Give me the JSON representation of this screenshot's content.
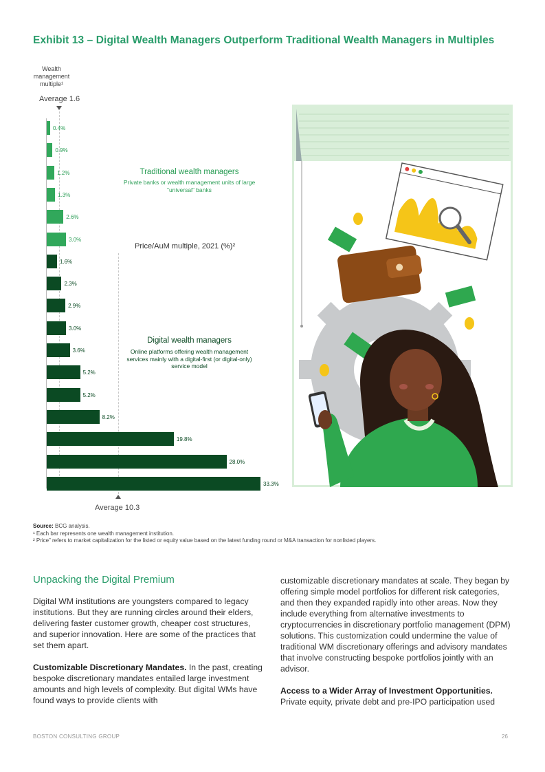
{
  "exhibit_title": "Exhibit 13 – Digital Wealth Managers Outperform Traditional Wealth Managers in Multiples",
  "chart_data": {
    "type": "bar",
    "orientation": "horizontal",
    "ylabel": "Wealth management multiple¹",
    "subtitle": "Price/AuM multiple, 2021 (%)²",
    "average_top_label": "Average 1.6",
    "average_bottom_label": "Average 10.3",
    "series": [
      {
        "name": "Traditional wealth managers",
        "description": "Private banks or wealth management units of large “universal” banks",
        "color": "#31a85b",
        "values": [
          0.4,
          0.9,
          1.2,
          1.3,
          2.6,
          3.0
        ],
        "labels": [
          "0.4%",
          "0.9%",
          "1.2%",
          "1.3%",
          "2.6%",
          "3.0%"
        ]
      },
      {
        "name": "Digital wealth managers",
        "description": "Online platforms offering wealth management services mainly with a digital-first (or digital-only) service model",
        "color": "#0b4a23",
        "values": [
          1.6,
          2.3,
          2.9,
          3.0,
          3.6,
          5.2,
          5.2,
          8.2,
          19.8,
          28.0,
          33.3
        ],
        "labels": [
          "1.6%",
          "2.3%",
          "2.9%",
          "3.0%",
          "3.6%",
          "5.2%",
          "5.2%",
          "8.2%",
          "19.8%",
          "28.0%",
          "33.3%"
        ]
      }
    ]
  },
  "source": {
    "label": "Source:",
    "text": "BCG analysis.",
    "note1": "¹ Each bar represents one wealth management institution.",
    "note2": "² Price” refers to market capitalization for the listed or equity value based on the latest funding round or M&A transaction for nonlisted players."
  },
  "body": {
    "heading": "Unpacking the Digital Premium",
    "p1": "Digital WM institutions are youngsters compared to legacy institutions. But they are running circles around their elders, delivering faster customer growth, cheaper cost structures, and superior innovation. Here are some of the practices that set them apart.",
    "p2_bold": "Customizable Discretionary Mandates.",
    "p2": " In the past, creating bespoke discretionary mandates entailed large investment amounts and high levels of complexity. But digital WMs have found ways to provide clients with",
    "p3": "customizable discretionary mandates at scale. They began by offering simple model portfolios for different risk categories, and then they expanded rapidly into other areas. Now they include everything from alternative investments to cryptocurrencies in discretionary portfolio management (DPM) solutions. This customization could undermine the value of traditional WM discretionary offerings and advisory mandates that involve constructing bespoke portfolios jointly with an advisor.",
    "p4_bold": "Access to a Wider Array of Investment Opportunities.",
    "p4": "Private equity, private debt and pre-IPO participation used"
  },
  "footer": {
    "left": "BOSTON CONSULTING GROUP",
    "right": "26"
  },
  "illustration": {
    "icon": "woman-with-phone-wealth-illustration",
    "bg_color": "#d9eed9",
    "accent_green": "#2fa84f",
    "chart_yellow": "#f5c518"
  }
}
